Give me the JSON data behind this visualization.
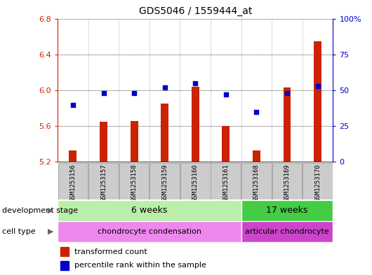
{
  "title": "GDS5046 / 1559444_at",
  "samples": [
    "GSM1253156",
    "GSM1253157",
    "GSM1253158",
    "GSM1253159",
    "GSM1253160",
    "GSM1253161",
    "GSM1253168",
    "GSM1253169",
    "GSM1253170"
  ],
  "transformed_counts": [
    5.33,
    5.65,
    5.66,
    5.85,
    6.04,
    5.6,
    5.33,
    6.03,
    6.55
  ],
  "percentile_ranks": [
    40,
    48,
    48,
    52,
    55,
    47,
    35,
    48,
    53
  ],
  "ylim": [
    5.2,
    6.8
  ],
  "yticks_left": [
    5.2,
    5.6,
    6.0,
    6.4,
    6.8
  ],
  "yticks_right_vals": [
    0,
    25,
    50,
    75,
    100
  ],
  "yticks_right_labels": [
    "0",
    "25",
    "50",
    "75",
    "100%"
  ],
  "bar_color": "#cc2200",
  "dot_color": "#0000cc",
  "bar_baseline": 5.2,
  "n_6w": 6,
  "n_17w": 3,
  "dev_6w_label": "6 weeks",
  "dev_17w_label": "17 weeks",
  "cell_cc_label": "chondrocyte condensation",
  "cell_ac_label": "articular chondrocyte",
  "dev_stage_color_6w": "#bbeeaa",
  "dev_stage_color_17w": "#44cc44",
  "cell_type_color_cc": "#ee88ee",
  "cell_type_color_ac": "#cc44cc",
  "legend_bar_label": "transformed count",
  "legend_dot_label": "percentile rank within the sample",
  "sample_box_color": "#cccccc",
  "chart_bg": "#ffffff",
  "border_color": "#888888"
}
